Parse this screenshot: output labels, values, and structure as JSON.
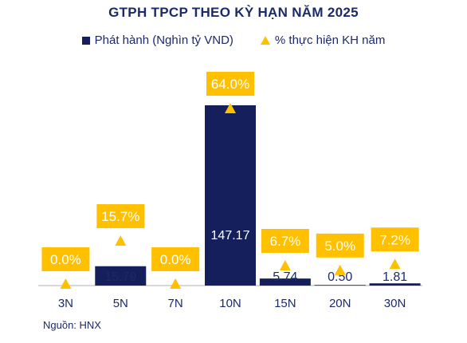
{
  "chart_data": {
    "type": "bar",
    "title": "GTPH TPCP THEO KỲ HẠN NĂM 2025",
    "categories": [
      "3N",
      "5N",
      "7N",
      "10N",
      "15N",
      "20N",
      "30N"
    ],
    "series": [
      {
        "name": "Phát hành (Nghìn tỷ VND)",
        "type": "bar",
        "values": [
          0,
          15.79,
          0,
          147.17,
          5.74,
          0.5,
          1.81
        ],
        "labels": [
          "",
          "15.79",
          "",
          "147.17",
          "5.74",
          "0.50",
          "1.81"
        ]
      },
      {
        "name": "% thực hiện KH năm",
        "type": "marker",
        "values": [
          0.0,
          15.7,
          0.0,
          64.0,
          6.7,
          5.0,
          7.2
        ],
        "labels": [
          "0.0%",
          "15.7%",
          "0.0%",
          "64.0%",
          "6.7%",
          "5.0%",
          "7.2%"
        ]
      }
    ],
    "colors": {
      "bar": "#141f5c",
      "marker": "#ffc000",
      "label_box": "#ffc000",
      "text": "#1b2a6b"
    },
    "legend_position": "top",
    "grid": false
  },
  "source": "Nguồn: HNX"
}
